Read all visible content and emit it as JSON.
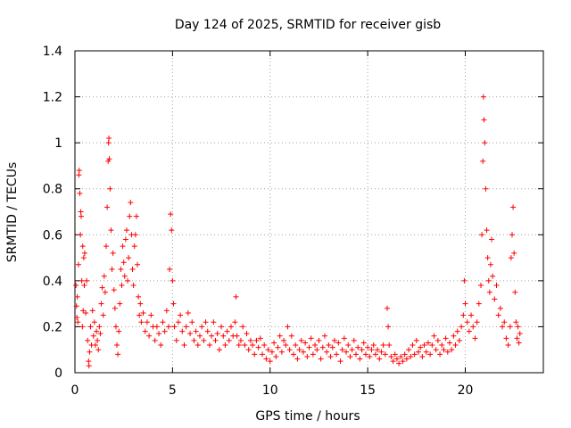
{
  "chart_data": {
    "type": "scatter",
    "title": "Day 124 of 2025, SRMTID for receiver gisb",
    "xlabel": "GPS time / hours",
    "ylabel": "SRMTID / TECUs",
    "xlim": [
      0,
      24
    ],
    "ylim": [
      0,
      1.4
    ],
    "xticks": [
      0,
      5,
      10,
      15,
      20
    ],
    "yticks": [
      0,
      0.2,
      0.4,
      0.6,
      0.8,
      1,
      1.2,
      1.4
    ],
    "xtick_labels": [
      "0",
      "5",
      "10",
      "15",
      "20"
    ],
    "ytick_labels": [
      "0",
      "0.2",
      "0.4",
      "0.6",
      "0.8",
      "1",
      "1.2",
      "1.4"
    ],
    "grid": true,
    "marker": "+",
    "color": "#ff0000",
    "series": [
      {
        "name": "SRMTID",
        "points": [
          [
            0.05,
            0.38
          ],
          [
            0.08,
            0.29
          ],
          [
            0.1,
            0.24
          ],
          [
            0.12,
            0.33
          ],
          [
            0.15,
            0.22
          ],
          [
            0.18,
            0.47
          ],
          [
            0.2,
            0.86
          ],
          [
            0.22,
            0.88
          ],
          [
            0.25,
            0.78
          ],
          [
            0.28,
            0.6
          ],
          [
            0.3,
            0.7
          ],
          [
            0.32,
            0.68
          ],
          [
            0.35,
            0.4
          ],
          [
            0.38,
            0.2
          ],
          [
            0.4,
            0.55
          ],
          [
            0.42,
            0.27
          ],
          [
            0.45,
            0.5
          ],
          [
            0.48,
            0.38
          ],
          [
            0.5,
            0.52
          ],
          [
            0.55,
            0.26
          ],
          [
            0.6,
            0.4
          ],
          [
            0.65,
            0.14
          ],
          [
            0.7,
            0.05
          ],
          [
            0.72,
            0.03
          ],
          [
            0.75,
            0.09
          ],
          [
            0.8,
            0.2
          ],
          [
            0.85,
            0.12
          ],
          [
            0.9,
            0.27
          ],
          [
            0.95,
            0.16
          ],
          [
            1.0,
            0.22
          ],
          [
            1.05,
            0.12
          ],
          [
            1.1,
            0.18
          ],
          [
            1.15,
            0.14
          ],
          [
            1.2,
            0.1
          ],
          [
            1.25,
            0.2
          ],
          [
            1.3,
            0.17
          ],
          [
            1.35,
            0.3
          ],
          [
            1.4,
            0.37
          ],
          [
            1.45,
            0.25
          ],
          [
            1.5,
            0.42
          ],
          [
            1.55,
            0.35
          ],
          [
            1.6,
            0.55
          ],
          [
            1.65,
            0.72
          ],
          [
            1.7,
            0.92
          ],
          [
            1.72,
            1.0
          ],
          [
            1.74,
            1.02
          ],
          [
            1.76,
            0.93
          ],
          [
            1.8,
            0.8
          ],
          [
            1.85,
            0.62
          ],
          [
            1.9,
            0.45
          ],
          [
            1.95,
            0.52
          ],
          [
            2.0,
            0.36
          ],
          [
            2.05,
            0.28
          ],
          [
            2.1,
            0.2
          ],
          [
            2.15,
            0.12
          ],
          [
            2.2,
            0.08
          ],
          [
            2.25,
            0.18
          ],
          [
            2.3,
            0.3
          ],
          [
            2.35,
            0.45
          ],
          [
            2.4,
            0.38
          ],
          [
            2.45,
            0.55
          ],
          [
            2.5,
            0.48
          ],
          [
            2.55,
            0.42
          ],
          [
            2.6,
            0.58
          ],
          [
            2.65,
            0.62
          ],
          [
            2.7,
            0.4
          ],
          [
            2.75,
            0.5
          ],
          [
            2.8,
            0.68
          ],
          [
            2.85,
            0.74
          ],
          [
            2.9,
            0.6
          ],
          [
            2.95,
            0.45
          ],
          [
            3.0,
            0.38
          ],
          [
            3.05,
            0.55
          ],
          [
            3.1,
            0.6
          ],
          [
            3.15,
            0.68
          ],
          [
            3.2,
            0.47
          ],
          [
            3.25,
            0.33
          ],
          [
            3.3,
            0.25
          ],
          [
            3.35,
            0.3
          ],
          [
            3.4,
            0.22
          ],
          [
            3.5,
            0.26
          ],
          [
            3.6,
            0.18
          ],
          [
            3.7,
            0.22
          ],
          [
            3.8,
            0.16
          ],
          [
            3.9,
            0.25
          ],
          [
            4.0,
            0.2
          ],
          [
            4.1,
            0.14
          ],
          [
            4.2,
            0.2
          ],
          [
            4.3,
            0.17
          ],
          [
            4.4,
            0.12
          ],
          [
            4.5,
            0.22
          ],
          [
            4.6,
            0.18
          ],
          [
            4.7,
            0.27
          ],
          [
            4.8,
            0.2
          ],
          [
            4.85,
            0.45
          ],
          [
            4.9,
            0.69
          ],
          [
            4.95,
            0.62
          ],
          [
            5.0,
            0.4
          ],
          [
            5.05,
            0.3
          ],
          [
            5.1,
            0.2
          ],
          [
            5.2,
            0.14
          ],
          [
            5.3,
            0.22
          ],
          [
            5.4,
            0.25
          ],
          [
            5.5,
            0.18
          ],
          [
            5.6,
            0.12
          ],
          [
            5.7,
            0.2
          ],
          [
            5.8,
            0.26
          ],
          [
            5.9,
            0.17
          ],
          [
            6.0,
            0.22
          ],
          [
            6.1,
            0.14
          ],
          [
            6.2,
            0.18
          ],
          [
            6.3,
            0.12
          ],
          [
            6.4,
            0.16
          ],
          [
            6.5,
            0.2
          ],
          [
            6.6,
            0.14
          ],
          [
            6.7,
            0.22
          ],
          [
            6.8,
            0.18
          ],
          [
            6.9,
            0.12
          ],
          [
            7.0,
            0.16
          ],
          [
            7.1,
            0.22
          ],
          [
            7.2,
            0.14
          ],
          [
            7.3,
            0.17
          ],
          [
            7.4,
            0.1
          ],
          [
            7.5,
            0.2
          ],
          [
            7.6,
            0.16
          ],
          [
            7.7,
            0.12
          ],
          [
            7.8,
            0.18
          ],
          [
            7.9,
            0.14
          ],
          [
            8.0,
            0.2
          ],
          [
            8.1,
            0.16
          ],
          [
            8.2,
            0.22
          ],
          [
            8.25,
            0.33
          ],
          [
            8.3,
            0.16
          ],
          [
            8.4,
            0.12
          ],
          [
            8.5,
            0.14
          ],
          [
            8.6,
            0.2
          ],
          [
            8.7,
            0.12
          ],
          [
            8.8,
            0.17
          ],
          [
            8.9,
            0.1
          ],
          [
            9.0,
            0.14
          ],
          [
            9.1,
            0.12
          ],
          [
            9.2,
            0.08
          ],
          [
            9.3,
            0.14
          ],
          [
            9.4,
            0.11
          ],
          [
            9.5,
            0.15
          ],
          [
            9.6,
            0.08
          ],
          [
            9.7,
            0.12
          ],
          [
            9.8,
            0.06
          ],
          [
            9.9,
            0.1
          ],
          [
            10.0,
            0.05
          ],
          [
            10.1,
            0.09
          ],
          [
            10.2,
            0.13
          ],
          [
            10.3,
            0.07
          ],
          [
            10.4,
            0.11
          ],
          [
            10.5,
            0.16
          ],
          [
            10.6,
            0.09
          ],
          [
            10.7,
            0.14
          ],
          [
            10.8,
            0.12
          ],
          [
            10.9,
            0.2
          ],
          [
            11.0,
            0.1
          ],
          [
            11.1,
            0.16
          ],
          [
            11.2,
            0.08
          ],
          [
            11.3,
            0.12
          ],
          [
            11.4,
            0.06
          ],
          [
            11.5,
            0.1
          ],
          [
            11.6,
            0.14
          ],
          [
            11.7,
            0.09
          ],
          [
            11.8,
            0.13
          ],
          [
            11.9,
            0.07
          ],
          [
            12.0,
            0.11
          ],
          [
            12.1,
            0.15
          ],
          [
            12.2,
            0.08
          ],
          [
            12.3,
            0.12
          ],
          [
            12.4,
            0.1
          ],
          [
            12.5,
            0.14
          ],
          [
            12.6,
            0.06
          ],
          [
            12.7,
            0.11
          ],
          [
            12.8,
            0.16
          ],
          [
            12.9,
            0.09
          ],
          [
            13.0,
            0.12
          ],
          [
            13.1,
            0.07
          ],
          [
            13.2,
            0.11
          ],
          [
            13.3,
            0.14
          ],
          [
            13.4,
            0.08
          ],
          [
            13.5,
            0.13
          ],
          [
            13.6,
            0.05
          ],
          [
            13.7,
            0.1
          ],
          [
            13.8,
            0.15
          ],
          [
            13.9,
            0.09
          ],
          [
            14.0,
            0.12
          ],
          [
            14.1,
            0.07
          ],
          [
            14.2,
            0.1
          ],
          [
            14.3,
            0.14
          ],
          [
            14.4,
            0.08
          ],
          [
            14.5,
            0.11
          ],
          [
            14.6,
            0.06
          ],
          [
            14.7,
            0.1
          ],
          [
            14.8,
            0.13
          ],
          [
            14.9,
            0.08
          ],
          [
            15.0,
            0.11
          ],
          [
            15.1,
            0.07
          ],
          [
            15.2,
            0.1
          ],
          [
            15.3,
            0.12
          ],
          [
            15.4,
            0.08
          ],
          [
            15.5,
            0.1
          ],
          [
            15.6,
            0.06
          ],
          [
            15.7,
            0.09
          ],
          [
            15.8,
            0.12
          ],
          [
            15.9,
            0.08
          ],
          [
            16.0,
            0.28
          ],
          [
            16.05,
            0.2
          ],
          [
            16.1,
            0.12
          ],
          [
            16.2,
            0.07
          ],
          [
            16.3,
            0.05
          ],
          [
            16.4,
            0.08
          ],
          [
            16.5,
            0.06
          ],
          [
            16.6,
            0.04
          ],
          [
            16.7,
            0.07
          ],
          [
            16.8,
            0.05
          ],
          [
            16.9,
            0.08
          ],
          [
            17.0,
            0.06
          ],
          [
            17.1,
            0.1
          ],
          [
            17.2,
            0.07
          ],
          [
            17.3,
            0.12
          ],
          [
            17.4,
            0.08
          ],
          [
            17.5,
            0.14
          ],
          [
            17.6,
            0.09
          ],
          [
            17.7,
            0.11
          ],
          [
            17.8,
            0.07
          ],
          [
            17.9,
            0.12
          ],
          [
            18.0,
            0.09
          ],
          [
            18.1,
            0.13
          ],
          [
            18.2,
            0.08
          ],
          [
            18.3,
            0.12
          ],
          [
            18.4,
            0.16
          ],
          [
            18.5,
            0.1
          ],
          [
            18.6,
            0.14
          ],
          [
            18.7,
            0.08
          ],
          [
            18.8,
            0.12
          ],
          [
            18.9,
            0.1
          ],
          [
            19.0,
            0.15
          ],
          [
            19.1,
            0.09
          ],
          [
            19.2,
            0.13
          ],
          [
            19.3,
            0.1
          ],
          [
            19.4,
            0.16
          ],
          [
            19.5,
            0.12
          ],
          [
            19.6,
            0.18
          ],
          [
            19.7,
            0.14
          ],
          [
            19.8,
            0.2
          ],
          [
            19.9,
            0.25
          ],
          [
            19.95,
            0.4
          ],
          [
            20.0,
            0.3
          ],
          [
            20.1,
            0.22
          ],
          [
            20.2,
            0.18
          ],
          [
            20.3,
            0.25
          ],
          [
            20.4,
            0.2
          ],
          [
            20.5,
            0.15
          ],
          [
            20.6,
            0.22
          ],
          [
            20.7,
            0.3
          ],
          [
            20.8,
            0.38
          ],
          [
            20.85,
            0.6
          ],
          [
            20.9,
            0.92
          ],
          [
            20.93,
            1.2
          ],
          [
            20.96,
            1.1
          ],
          [
            21.0,
            1.0
          ],
          [
            21.05,
            0.8
          ],
          [
            21.1,
            0.62
          ],
          [
            21.15,
            0.5
          ],
          [
            21.2,
            0.4
          ],
          [
            21.25,
            0.35
          ],
          [
            21.3,
            0.47
          ],
          [
            21.35,
            0.58
          ],
          [
            21.4,
            0.42
          ],
          [
            21.5,
            0.32
          ],
          [
            21.6,
            0.38
          ],
          [
            21.7,
            0.25
          ],
          [
            21.8,
            0.28
          ],
          [
            21.9,
            0.2
          ],
          [
            22.0,
            0.22
          ],
          [
            22.1,
            0.15
          ],
          [
            22.2,
            0.12
          ],
          [
            22.3,
            0.2
          ],
          [
            22.35,
            0.5
          ],
          [
            22.4,
            0.6
          ],
          [
            22.45,
            0.72
          ],
          [
            22.5,
            0.52
          ],
          [
            22.55,
            0.35
          ],
          [
            22.6,
            0.22
          ],
          [
            22.65,
            0.15
          ],
          [
            22.7,
            0.2
          ],
          [
            22.75,
            0.13
          ],
          [
            22.8,
            0.17
          ]
        ]
      }
    ]
  }
}
